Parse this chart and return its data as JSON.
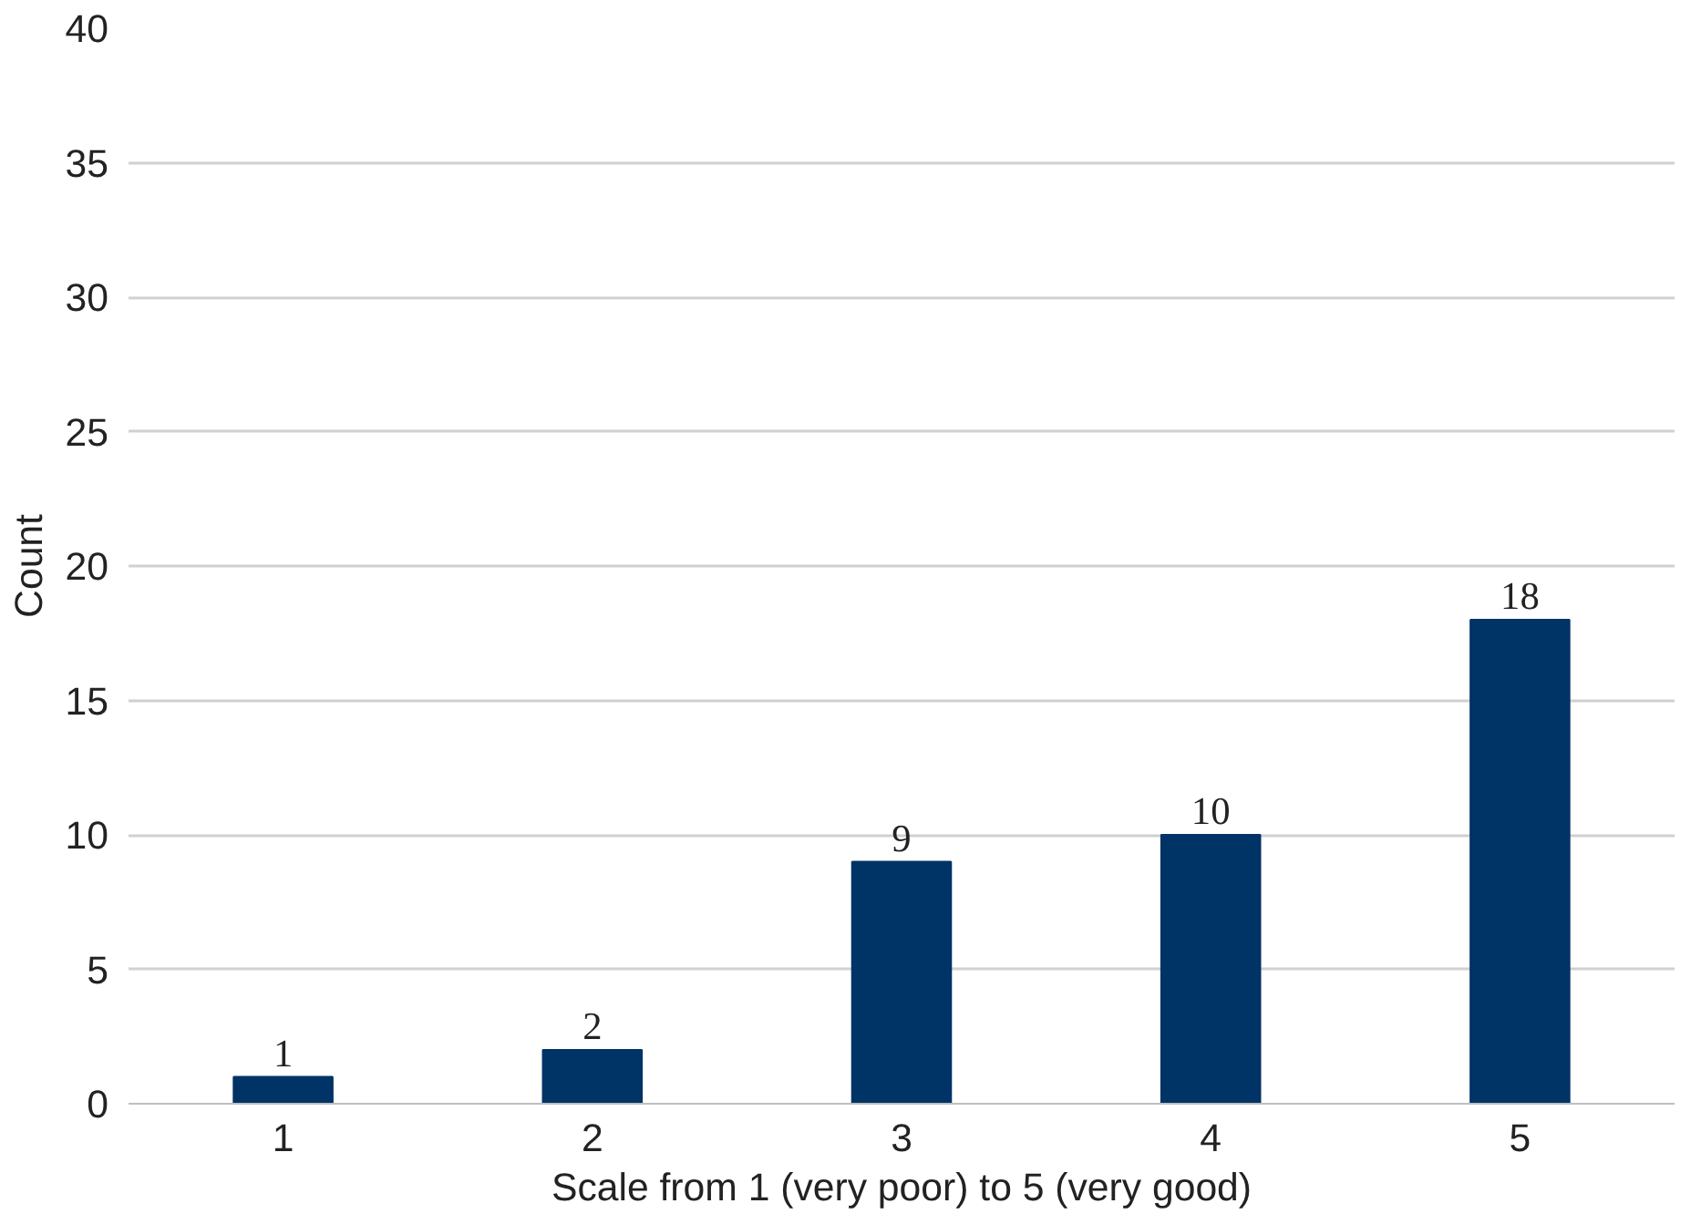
{
  "chart_data": {
    "type": "bar",
    "xlabel": "Scale from 1 (very poor) to 5 (very good)",
    "ylabel": "Count",
    "categories": [
      "1",
      "2",
      "3",
      "4",
      "5"
    ],
    "values": [
      1,
      2,
      9,
      10,
      18
    ],
    "color": "#003366",
    "ylim": [
      0,
      40
    ],
    "yticks": [
      0,
      5,
      10,
      15,
      20,
      25,
      30,
      35,
      40
    ],
    "grid": "y",
    "data_labels": true
  }
}
